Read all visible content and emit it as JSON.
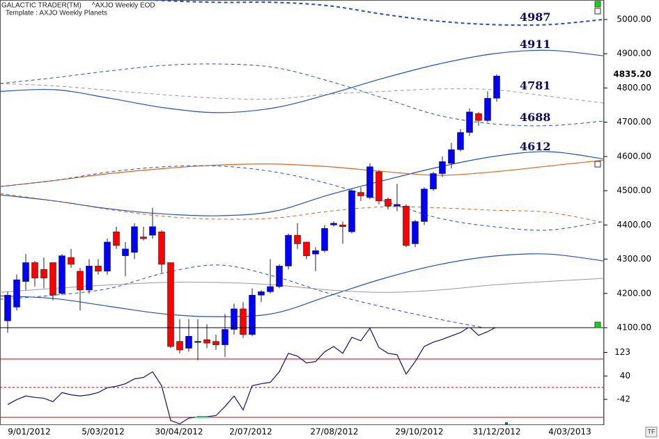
{
  "chart_data": {
    "type": "candlestick",
    "title": "GALACTIC TRADER(TM)",
    "subtitle": "^AXJO Weekly EOD",
    "template": "Template : AXJO Weekly Planets",
    "x_labels": [
      "9/01/2012",
      "5/03/2012",
      "30/04/2012",
      "2/07/2012",
      "27/08/2012",
      "29/10/2012",
      "31/12/2012",
      "4/03/2013"
    ],
    "candles": {
      "up_color": "#0000ff",
      "down_color": "#ff0000",
      "open": [
        4120,
        4160,
        4235,
        4290,
        4270,
        4290,
        4200,
        4305,
        4265,
        4210,
        4280,
        4265,
        4380,
        4310,
        4320,
        4365,
        4370,
        4380,
        4290,
        4060,
        4040,
        4060,
        4065,
        4060,
        4050,
        4095,
        4155,
        4080,
        4195,
        4205,
        4220,
        4280,
        4370,
        4350,
        4315,
        4325,
        4400,
        4400,
        4380,
        4495,
        4480,
        4555,
        4475,
        4455,
        4455,
        4345,
        4410,
        4505,
        4550,
        4580,
        4620,
        4670,
        4725,
        4705,
        4770
      ],
      "high": [
        4205,
        4255,
        4315,
        4295,
        4305,
        4290,
        4315,
        4330,
        4275,
        4300,
        4300,
        4360,
        4395,
        4350,
        4405,
        4395,
        4450,
        4385,
        4290,
        4125,
        4125,
        4125,
        4110,
        4080,
        4140,
        4170,
        4175,
        4215,
        4210,
        4300,
        4285,
        4375,
        4405,
        4350,
        4335,
        4400,
        4410,
        4410,
        4505,
        4510,
        4580,
        4560,
        4480,
        4520,
        4460,
        4415,
        4510,
        4555,
        4600,
        4640,
        4680,
        4740,
        4730,
        4790,
        4840
      ],
      "low": [
        4085,
        4150,
        4210,
        4220,
        4215,
        4180,
        4195,
        4275,
        4150,
        4200,
        4255,
        4255,
        4330,
        4250,
        4300,
        4355,
        4360,
        4260,
        4040,
        4025,
        4030,
        4005,
        4040,
        4035,
        4015,
        4080,
        4070,
        4075,
        4175,
        4200,
        4215,
        4270,
        4330,
        4300,
        4265,
        4320,
        4395,
        4345,
        4375,
        4470,
        4475,
        4460,
        4445,
        4440,
        4335,
        4335,
        4400,
        4500,
        4540,
        4565,
        4615,
        4660,
        4690,
        4700,
        4760
      ],
      "close": [
        4195,
        4240,
        4290,
        4245,
        4245,
        4195,
        4310,
        4285,
        4210,
        4280,
        4265,
        4350,
        4340,
        4330,
        4395,
        4360,
        4395,
        4285,
        4045,
        4035,
        4075,
        4060,
        4055,
        4050,
        4095,
        4155,
        4080,
        4195,
        4205,
        4220,
        4280,
        4370,
        4345,
        4310,
        4325,
        4390,
        4405,
        4395,
        4500,
        4485,
        4570,
        4470,
        4455,
        4460,
        4340,
        4410,
        4505,
        4550,
        4585,
        4620,
        4670,
        4730,
        4705,
        4770,
        4835
      ]
    },
    "last_price": 4835.2,
    "last_price_label": "4835.20",
    "planet_lines": [
      {
        "label": 4987,
        "color": "#1e50c8",
        "dash": true,
        "width": 2,
        "values": [
          5120,
          5090,
          5065,
          5055,
          5050,
          5050,
          5040,
          5015,
          4995,
          4985,
          4985,
          5000
        ]
      },
      {
        "label": 4911,
        "color": "#1e50c8",
        "dash": false,
        "width": 1.2,
        "values": [
          4790,
          4795,
          4770,
          4742,
          4728,
          4742,
          4782,
          4829,
          4870,
          4900,
          4910,
          4894
        ]
      },
      {
        "label": 4781,
        "color": "#999999",
        "dash": true,
        "width": 1,
        "values": [
          4813,
          4806,
          4793,
          4780,
          4770,
          4768,
          4782,
          4790,
          4797,
          4795,
          4776,
          4756
        ]
      },
      {
        "label": 4688,
        "color": "#1e50c8",
        "dash": true,
        "width": 1,
        "values": [
          4813,
          4830,
          4850,
          4866,
          4870,
          4860,
          4820,
          4770,
          4720,
          4695,
          4690,
          4703
        ]
      },
      {
        "label": 4612,
        "color": "#1e50c8",
        "dash": false,
        "width": 1.2,
        "values": [
          4488,
          4470,
          4447,
          4432,
          4427,
          4440,
          4488,
          4530,
          4569,
          4600,
          4614,
          4593
        ]
      },
      {
        "color": "#e0601c",
        "dash": false,
        "width": 1.2,
        "values": [
          4512,
          4530,
          4550,
          4565,
          4575,
          4578,
          4570,
          4556,
          4545,
          4555,
          4572,
          4589
        ]
      },
      {
        "color": "#1e50c8",
        "dash": true,
        "width": 1,
        "values": [
          4512,
          4530,
          4555,
          4570,
          4572,
          4555,
          4520,
          4470,
          4420,
          4395,
          4385,
          4410
        ]
      },
      {
        "color": "#e0601c",
        "dash": true,
        "width": 1,
        "values": [
          4492,
          4470,
          4445,
          4425,
          4417,
          4420,
          4440,
          4453,
          4450,
          4443,
          4437,
          4407
        ]
      },
      {
        "color": "#1e50c8",
        "dash": false,
        "width": 1.2,
        "values": [
          4193,
          4185,
          4162,
          4140,
          4132,
          4142,
          4193,
          4244,
          4284,
          4309,
          4315,
          4295
        ]
      },
      {
        "color": "#999999",
        "dash": false,
        "width": 1,
        "values": [
          4203,
          4215,
          4225,
          4232,
          4232,
          4225,
          4210,
          4203,
          4210,
          4225,
          4235,
          4244
        ]
      },
      {
        "color": "#1e50c8",
        "dash": true,
        "width": 1,
        "values": [
          4183,
          4195,
          4215,
          4260,
          4283,
          4250,
          4200,
          4160,
          4125,
          4095,
          4070,
          4050
        ]
      }
    ],
    "ylim": [
      4100,
      5000
    ],
    "yticks": [
      {
        "value": 4100,
        "label": "4100.00"
      },
      {
        "value": 4200,
        "label": "4200.00"
      },
      {
        "value": 4300,
        "label": "4300.00"
      },
      {
        "value": 4400,
        "label": "4400.00"
      },
      {
        "value": 4500,
        "label": "4500.00"
      },
      {
        "value": 4600,
        "label": "4600.00"
      },
      {
        "value": 4700,
        "label": "4700.00"
      },
      {
        "value": 4800,
        "label": "4800.00"
      },
      {
        "value": 4900,
        "label": "4900.00"
      },
      {
        "value": 5000,
        "label": "5000.00"
      }
    ],
    "oscillator": {
      "color": "#10107a",
      "values": [
        -60,
        -43,
        -30,
        -35,
        -38,
        -50,
        -18,
        -26,
        -30,
        -26,
        -18,
        -1,
        4,
        13,
        30,
        35,
        55,
        6,
        -116,
        -128,
        -108,
        -103,
        -103,
        -99,
        -67,
        -30,
        -79,
        6,
        13,
        18,
        55,
        120,
        110,
        86,
        91,
        125,
        144,
        120,
        176,
        164,
        208,
        140,
        120,
        115,
        47,
        91,
        144,
        159,
        169,
        181,
        193,
        213,
        183,
        196,
        213
      ],
      "ylim": [
        -125,
        210
      ],
      "yticks": [
        123,
        40,
        -42
      ],
      "levels": [
        100,
        0,
        -105
      ],
      "level_styles": [
        "solid",
        "dashed",
        "solid"
      ],
      "level_color": "#cc0000"
    },
    "corner_label": "TF"
  }
}
